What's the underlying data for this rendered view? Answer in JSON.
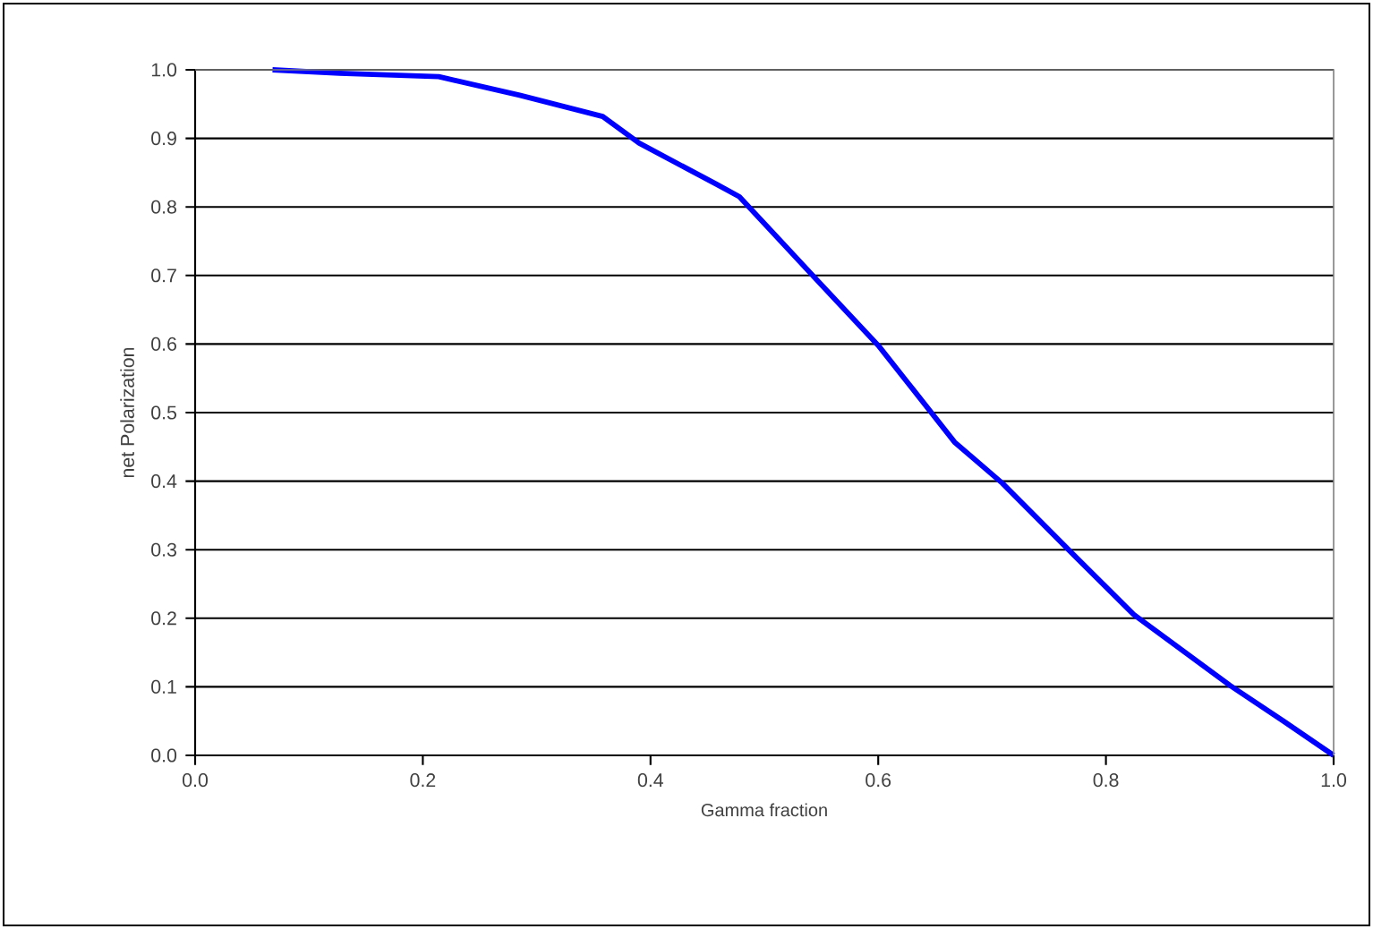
{
  "chart_data": {
    "type": "line",
    "xlabel": "Gamma fraction",
    "ylabel": "net Polarization",
    "x": [
      0.068,
      0.127,
      0.214,
      0.285,
      0.358,
      0.39,
      0.458,
      0.478,
      0.547,
      0.6,
      0.63,
      0.667,
      0.709,
      0.772,
      0.824,
      0.909,
      0.956,
      1.0
    ],
    "series": [
      {
        "color": "#0000ff",
        "values": [
          1.0,
          0.995,
          0.99,
          0.963,
          0.932,
          0.893,
          0.833,
          0.815,
          0.692,
          0.598,
          0.535,
          0.457,
          0.397,
          0.292,
          0.206,
          0.102,
          0.05,
          0.0
        ]
      }
    ],
    "xlim": [
      0,
      1
    ],
    "xticks": [
      {
        "value": 0,
        "label": "0.0"
      },
      {
        "value": 0.2,
        "label": "0.2"
      },
      {
        "value": 0.4,
        "label": "0.4"
      },
      {
        "value": 0.6,
        "label": "0.6"
      },
      {
        "value": 0.8,
        "label": "0.8"
      },
      {
        "value": 1,
        "label": "1.0"
      }
    ],
    "ylim": [
      0,
      1
    ],
    "yticks": [
      {
        "value": 0,
        "label": "0.0"
      },
      {
        "value": 0.1,
        "label": "0.1"
      },
      {
        "value": 0.2,
        "label": "0.2"
      },
      {
        "value": 0.3,
        "label": "0.3"
      },
      {
        "value": 0.4,
        "label": "0.4"
      },
      {
        "value": 0.5,
        "label": "0.5"
      },
      {
        "value": 0.6,
        "label": "0.6"
      },
      {
        "value": 0.7,
        "label": "0.7"
      },
      {
        "value": 0.8,
        "label": "0.8"
      },
      {
        "value": 0.9,
        "label": "0.9"
      },
      {
        "value": 1,
        "label": "1.0"
      }
    ],
    "grid": "y"
  }
}
